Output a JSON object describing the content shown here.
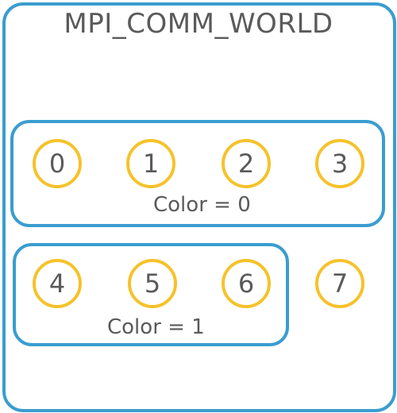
{
  "world": {
    "title": "MPI_COMM_WORLD"
  },
  "groups": [
    {
      "label": "Color = 0",
      "ranks": [
        "0",
        "1",
        "2",
        "3"
      ]
    },
    {
      "label": "Color = 1",
      "ranks": [
        "4",
        "5",
        "6"
      ]
    }
  ],
  "ungrouped_ranks": [
    "7"
  ],
  "colors": {
    "communicator_border": "#3a9dd0",
    "rank_border": "#f6c22b",
    "text": "#5a5a5a"
  }
}
